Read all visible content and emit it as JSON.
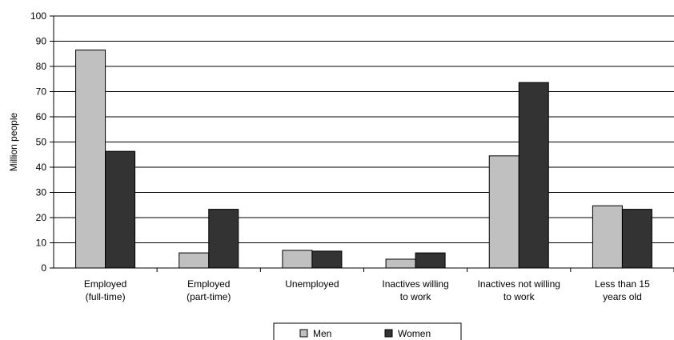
{
  "chart_data": {
    "type": "bar",
    "title": "",
    "xlabel": "",
    "ylabel": "Million people",
    "ylim": [
      0,
      100
    ],
    "yticks": [
      0,
      10,
      20,
      30,
      40,
      50,
      60,
      70,
      80,
      90,
      100
    ],
    "grid": true,
    "legend_position": "bottom",
    "categories": [
      [
        "Employed",
        "(full-time)"
      ],
      [
        "Employed",
        "(part-time)"
      ],
      [
        "Unemployed"
      ],
      [
        "Inactives willing",
        "to work"
      ],
      [
        "Inactives not willing",
        "to work"
      ],
      [
        "Less than 15",
        "years old"
      ]
    ],
    "series": [
      {
        "name": "Men",
        "color": "#c0c0c0",
        "values": [
          86.5,
          6,
          7,
          3.5,
          44.5,
          24.7
        ]
      },
      {
        "name": "Women",
        "color": "#333333",
        "values": [
          46.3,
          23.3,
          6.7,
          6,
          73.6,
          23.3
        ]
      }
    ]
  }
}
